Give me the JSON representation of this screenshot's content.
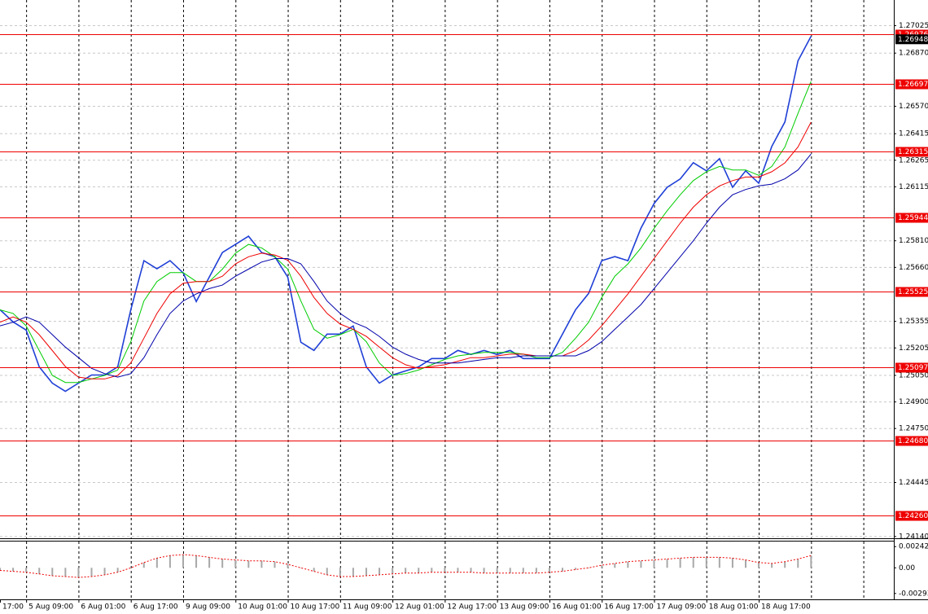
{
  "chart_data": [
    {
      "type": "line",
      "categories": [
        "17:00",
        null,
        "5 Aug 09:00",
        null,
        null,
        null,
        "6 Aug 01:00",
        null,
        null,
        null,
        "6 Aug 17:00",
        null,
        null,
        null,
        "9 Aug 09:00",
        null,
        null,
        null,
        "10 Aug 01:00",
        null,
        null,
        null,
        "10 Aug 17:00",
        null,
        null,
        null,
        "11 Aug 09:00",
        null,
        null,
        null,
        "12 Aug 01:00",
        null,
        null,
        null,
        "12 Aug 17:00",
        null,
        null,
        null,
        "13 Aug 09:00",
        null,
        null,
        null,
        "16 Aug 01:00",
        null,
        null,
        null,
        "16 Aug 17:00",
        null,
        null,
        null,
        "17 Aug 09:00",
        null,
        null,
        null,
        "18 Aug 01:00",
        null,
        null,
        null,
        "18 Aug 17:00",
        null,
        null,
        null,
        null
      ],
      "series": [
        {
          "color": "#1f3fd6",
          "values": [
            1.25421,
            1.25352,
            1.25306,
            1.25098,
            1.25006,
            1.2496,
            1.25006,
            1.25052,
            1.25052,
            1.25098,
            1.25421,
            1.25698,
            1.25652,
            1.25698,
            1.25629,
            1.25467,
            1.25605,
            1.25744,
            1.2579,
            1.25836,
            1.25744,
            1.25721,
            1.25605,
            1.25237,
            1.25191,
            1.25283,
            1.25283,
            1.25329,
            1.25098,
            1.25006,
            1.25052,
            1.25075,
            1.25098,
            1.25145,
            1.25145,
            1.25191,
            1.25168,
            1.25191,
            1.25168,
            1.25191,
            1.25145,
            1.25145,
            1.25145,
            1.25283,
            1.25421,
            1.25513,
            1.25698,
            1.25721,
            1.25698,
            1.25882,
            1.2602,
            1.26112,
            1.26159,
            1.26251,
            1.26205,
            1.26274,
            1.26112,
            1.26205,
            1.26135,
            1.26343,
            1.26481,
            1.26827,
            1.26965
          ]
        },
        {
          "color": "#00cc00",
          "values": [
            1.2542,
            1.254,
            1.2533,
            1.2519,
            1.2505,
            1.2501,
            1.2501,
            1.2503,
            1.2505,
            1.2508,
            1.2524,
            1.2547,
            1.2558,
            1.2563,
            1.2563,
            1.2558,
            1.2558,
            1.2565,
            1.2574,
            1.2579,
            1.2577,
            1.2572,
            1.2565,
            1.2547,
            1.2531,
            1.2526,
            1.2528,
            1.2531,
            1.2524,
            1.2512,
            1.2505,
            1.2506,
            1.2508,
            1.2511,
            1.2514,
            1.2516,
            1.2517,
            1.2518,
            1.2518,
            1.2518,
            1.2517,
            1.2515,
            1.2515,
            1.2518,
            1.2526,
            1.2535,
            1.2549,
            1.2561,
            1.2568,
            1.2577,
            1.2588,
            1.2598,
            1.2607,
            1.2615,
            1.262,
            1.2623,
            1.2621,
            1.2621,
            1.2618,
            1.2623,
            1.2634,
            1.2653,
            1.2671
          ]
        },
        {
          "color": "#ee0000",
          "values": [
            1.2535,
            1.2538,
            1.2535,
            1.2528,
            1.2519,
            1.251,
            1.2504,
            1.2503,
            1.2503,
            1.2505,
            1.2512,
            1.2526,
            1.254,
            1.2551,
            1.2557,
            1.2558,
            1.2558,
            1.2561,
            1.2568,
            1.2572,
            1.2574,
            1.2573,
            1.257,
            1.2561,
            1.2549,
            1.254,
            1.2534,
            1.2531,
            1.2527,
            1.2521,
            1.2515,
            1.2511,
            1.2509,
            1.251,
            1.2511,
            1.2513,
            1.2515,
            1.2515,
            1.2516,
            1.2517,
            1.2517,
            1.2516,
            1.2516,
            1.2516,
            1.2519,
            1.2525,
            1.2533,
            1.2542,
            1.2551,
            1.2561,
            1.2571,
            1.2581,
            1.2591,
            1.26,
            1.2607,
            1.2612,
            1.2615,
            1.2617,
            1.2617,
            1.262,
            1.2625,
            1.2634,
            1.2648
          ]
        },
        {
          "color": "#0000aa",
          "values": [
            1.2533,
            1.2535,
            1.2538,
            1.2535,
            1.2528,
            1.2521,
            1.2515,
            1.2509,
            1.2506,
            1.2504,
            1.2506,
            1.2515,
            1.2528,
            1.254,
            1.2547,
            1.2551,
            1.2554,
            1.2556,
            1.2561,
            1.2565,
            1.2569,
            1.2571,
            1.2571,
            1.2568,
            1.2558,
            1.2547,
            1.254,
            1.2535,
            1.2532,
            1.2527,
            1.2521,
            1.2517,
            1.2514,
            1.2512,
            1.2512,
            1.2512,
            1.2513,
            1.2514,
            1.2515,
            1.2515,
            1.2516,
            1.2516,
            1.2516,
            1.2516,
            1.2516,
            1.2519,
            1.2524,
            1.2531,
            1.2538,
            1.2545,
            1.2554,
            1.2563,
            1.2572,
            1.2581,
            1.2591,
            1.26,
            1.2607,
            1.261,
            1.2612,
            1.2613,
            1.2616,
            1.2621,
            1.263
          ]
        }
      ],
      "ylim": [
        1.2413,
        1.2717
      ],
      "yticks": [
        1.27025,
        {
          "value": 1.2687,
          "label": "1.26870"
        },
        {
          "value": 1.2657,
          "label": "1.26570"
        },
        1.26415,
        1.26265,
        1.26115,
        {
          "value": 1.2581,
          "label": "1.25810"
        },
        {
          "value": 1.2566,
          "label": "1.25660"
        },
        1.25355,
        1.25205,
        {
          "value": 1.2505,
          "label": "1.25050"
        },
        {
          "value": 1.249,
          "label": "1.24900"
        },
        {
          "value": 1.2475,
          "label": "1.24750"
        },
        1.24445,
        {
          "value": 1.2414,
          "label": "1.24140"
        }
      ],
      "grid": true,
      "levels": [
        1.26976,
        1.26697,
        1.26315,
        1.25944,
        1.25525,
        1.25097,
        {
          "value": 1.2468,
          "label": "1.24680"
        },
        {
          "value": 1.2426,
          "label": "1.24260"
        }
      ],
      "level_color": "#ee0000",
      "current_price": 1.26948
    },
    {
      "type": "bar",
      "values": [
        -0.0003,
        -0.0004,
        -0.0005,
        -0.0007,
        -0.0009,
        -0.001,
        -0.0011,
        -0.001,
        -0.0008,
        -0.0005,
        0,
        0.0006,
        0.0011,
        0.0014,
        0.0015,
        0.0014,
        0.0012,
        0.001,
        0.0009,
        0.0008,
        0.0008,
        0.0007,
        0.0004,
        0,
        -0.0004,
        -0.0008,
        -0.001,
        -0.001,
        -0.0009,
        -0.0008,
        -0.0007,
        -0.0006,
        -0.0006,
        -0.0005,
        -0.0005,
        -0.0005,
        -0.0005,
        -0.0006,
        -0.0006,
        -0.0006,
        -0.0006,
        -0.0006,
        -0.0005,
        -0.0004,
        -0.0002,
        0,
        0.0003,
        0.0005,
        0.0007,
        0.0008,
        0.0009,
        0.001,
        0.0011,
        0.0012,
        0.0012,
        0.0012,
        0.0011,
        0.0009,
        0.0006,
        0.0005,
        0.0007,
        0.001,
        0.0014
      ],
      "color": "#a8a8a8",
      "line_color": "#ee0000",
      "ylim": [
        -0.0036,
        0.003
      ],
      "yticks": [
        0.00242,
        {
          "value": 0,
          "label": "0.00"
        },
        -0.00293
      ]
    }
  ]
}
